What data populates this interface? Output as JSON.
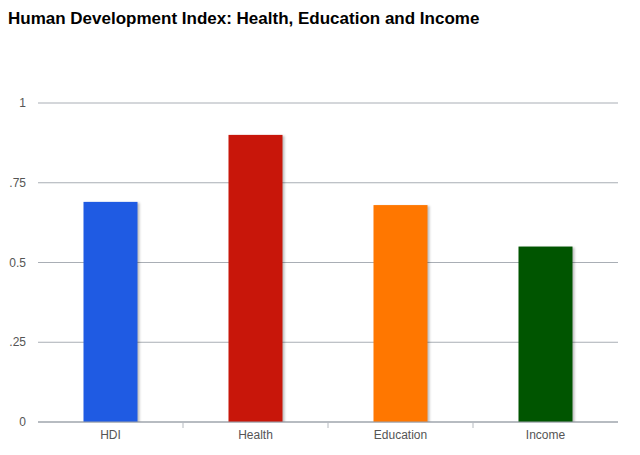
{
  "chart_data": {
    "type": "bar",
    "title": "Human Development Index: Health, Education and Income",
    "categories": [
      "HDI",
      "Health",
      "Education",
      "Income"
    ],
    "values": [
      0.69,
      0.9,
      0.68,
      0.55
    ],
    "colors": [
      "#1f5be3",
      "#c8160a",
      "#ff7700",
      "#005500"
    ],
    "ylim": [
      0,
      1
    ],
    "yticks": [
      0,
      {
        "value": 0.25,
        "label": ".25"
      },
      0.5,
      {
        "value": 0.75,
        "label": ".75"
      },
      1
    ],
    "grid": true
  }
}
